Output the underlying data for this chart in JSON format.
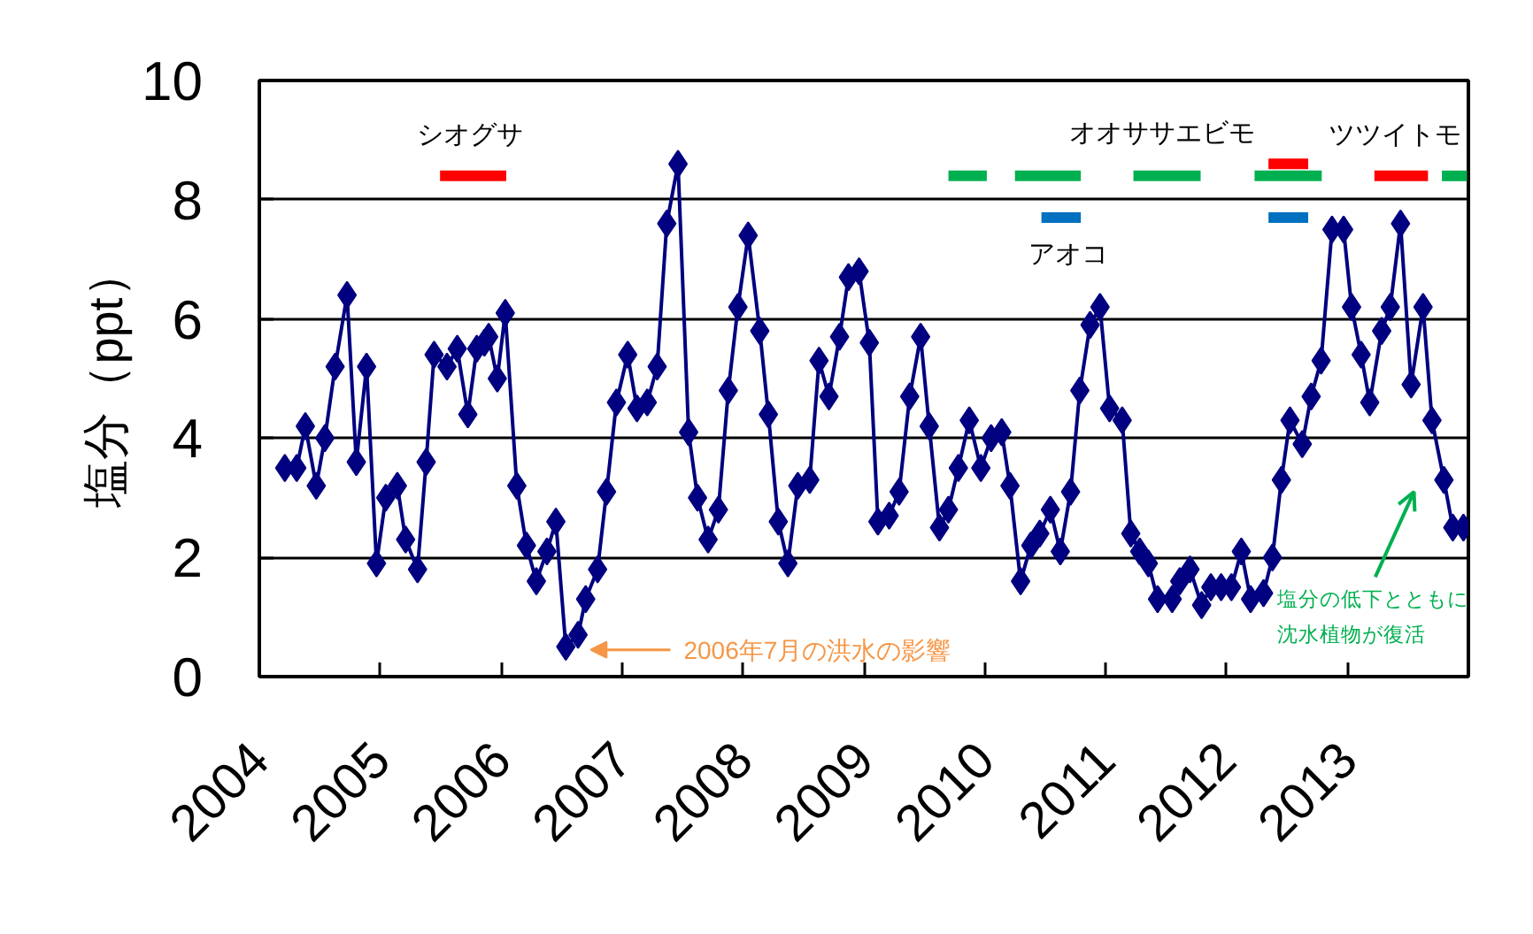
{
  "chart_data": {
    "type": "line",
    "ylabel": "塩分（ppt）",
    "marker": "diamond",
    "grid": "y",
    "xlim": [
      "2004",
      "2014"
    ],
    "xticks": [
      "2004",
      "2005",
      "2006",
      "2007",
      "2008",
      "2009",
      "2010",
      "2011",
      "2012",
      "2013"
    ],
    "ylim": [
      0,
      10
    ],
    "yticks": [
      0,
      2,
      4,
      6,
      8,
      10
    ],
    "x": [
      "2004-03-18",
      "2004-04-23",
      "2004-05-19",
      "2004-06-21",
      "2004-07-17",
      "2004-08-17",
      "2004-09-22",
      "2004-10-20",
      "2004-11-20",
      "2004-12-20",
      "2005-01-17",
      "2005-02-21",
      "2005-03-18",
      "2005-04-23",
      "2005-05-19",
      "2005-06-12",
      "2005-07-21",
      "2005-08-21",
      "2005-09-22",
      "2005-10-19",
      "2005-11-11",
      "2005-11-24",
      "2005-12-20",
      "2006-01-13",
      "2006-02-17",
      "2006-03-18",
      "2006-04-17",
      "2006-05-19",
      "2006-06-15",
      "2006-07-15",
      "2006-08-21",
      "2006-09-13",
      "2006-10-19",
      "2006-11-15",
      "2006-12-15",
      "2007-01-18",
      "2007-02-15",
      "2007-03-18",
      "2007-04-17",
      "2007-05-16",
      "2007-06-19",
      "2007-07-21",
      "2007-08-17",
      "2007-09-18",
      "2007-10-19",
      "2007-11-18",
      "2007-12-17",
      "2008-01-17",
      "2008-02-21",
      "2008-03-18",
      "2008-04-17",
      "2008-05-16",
      "2008-06-15",
      "2008-07-21",
      "2008-08-18",
      "2008-09-17",
      "2008-10-19",
      "2008-11-15",
      "2008-12-17",
      "2009-01-17",
      "2009-02-12",
      "2009-03-18",
      "2009-04-17",
      "2009-05-19",
      "2009-06-21",
      "2009-07-17",
      "2009-08-17",
      "2009-09-13",
      "2009-10-13",
      "2009-11-15",
      "2009-12-20",
      "2010-01-20",
      "2010-02-21",
      "2010-03-18",
      "2010-04-19",
      "2010-05-20",
      "2010-06-16",
      "2010-07-18",
      "2010-08-17",
      "2010-09-17",
      "2010-10-15",
      "2010-11-15",
      "2010-12-15",
      "2011-01-13",
      "2011-02-20",
      "2011-03-18",
      "2011-04-14",
      "2011-05-10",
      "2011-06-07",
      "2011-07-21",
      "2011-08-13",
      "2011-09-13",
      "2011-10-18",
      "2011-11-15",
      "2011-12-16",
      "2012-01-16",
      "2012-02-15",
      "2012-03-14",
      "2012-04-22",
      "2012-05-19",
      "2012-06-15",
      "2012-07-11",
      "2012-08-17",
      "2012-09-13",
      "2012-10-13",
      "2012-11-15",
      "2012-12-20",
      "2013-01-13",
      "2013-02-11",
      "2013-03-09",
      "2013-04-14",
      "2013-05-10",
      "2013-06-10",
      "2013-07-12",
      "2013-08-17",
      "2013-09-13",
      "2013-10-19",
      "2013-11-15",
      "2013-12-17"
    ],
    "series": [
      {
        "color": "#000080",
        "values": [
          3.5,
          3.5,
          4.2,
          3.2,
          4.0,
          5.2,
          6.4,
          3.6,
          5.2,
          1.9,
          3.0,
          3.2,
          2.3,
          1.8,
          3.6,
          5.4,
          5.2,
          5.5,
          4.4,
          5.5,
          5.6,
          5.7,
          5.0,
          6.1,
          3.2,
          2.2,
          1.6,
          2.1,
          2.6,
          0.5,
          0.7,
          1.3,
          1.8,
          3.1,
          4.6,
          5.4,
          4.5,
          4.6,
          5.2,
          7.6,
          8.6,
          4.1,
          3.0,
          2.3,
          2.8,
          4.8,
          6.2,
          7.4,
          5.8,
          4.4,
          2.6,
          1.9,
          3.2,
          3.3,
          5.3,
          4.7,
          5.7,
          6.7,
          6.8,
          5.6,
          2.6,
          2.7,
          3.1,
          4.7,
          5.7,
          4.2,
          2.5,
          2.8,
          3.5,
          4.3,
          3.5,
          4.0,
          4.1,
          3.2,
          1.6,
          2.2,
          2.4,
          2.8,
          2.1,
          3.1,
          4.8,
          5.9,
          6.2,
          4.5,
          4.3,
          2.4,
          2.1,
          1.9,
          1.3,
          1.3,
          1.6,
          1.8,
          1.2,
          1.5,
          1.5,
          1.5,
          2.1,
          1.3,
          1.4,
          2.0,
          3.3,
          4.3,
          3.9,
          4.7,
          5.3,
          7.5,
          7.5,
          6.2,
          5.4,
          4.6,
          5.8,
          6.2,
          7.6,
          4.9,
          6.2,
          4.3,
          3.3,
          2.5,
          2.5
        ]
      },
      {
        "color": "#ff0000",
        "marker": "none",
        "x": [
          "2005-06-30",
          "2006-01-16"
        ],
        "values": [
          8.4,
          8.4
        ]
      },
      {
        "color": "#00b050",
        "marker": "none",
        "x": [
          "2009-09-13",
          "2010-01-07"
        ],
        "values": [
          8.4,
          8.4
        ]
      },
      {
        "color": "#00b050",
        "marker": "none",
        "x": [
          "2010-04-02",
          "2010-10-18"
        ],
        "values": [
          8.4,
          8.4
        ]
      },
      {
        "color": "#00b050",
        "marker": "none",
        "x": [
          "2011-03-26",
          "2011-10-15"
        ],
        "values": [
          8.4,
          8.4
        ]
      },
      {
        "color": "#00b050",
        "marker": "none",
        "x": [
          "2012-03-26",
          "2012-10-15"
        ],
        "values": [
          8.4,
          8.4
        ]
      },
      {
        "color": "#00b050",
        "marker": "none",
        "x": [
          "2013-10-13",
          "2013-12-28"
        ],
        "values": [
          8.4,
          8.4
        ]
      },
      {
        "color": "#0070c0",
        "marker": "none",
        "x": [
          "2010-06-21",
          "2010-10-18"
        ],
        "values": [
          7.7,
          7.7
        ]
      },
      {
        "color": "#0070c0",
        "marker": "none",
        "x": [
          "2012-05-07",
          "2012-09-04"
        ],
        "values": [
          7.7,
          7.7
        ]
      },
      {
        "color": "#ff0000",
        "marker": "none",
        "x": [
          "2012-05-07",
          "2012-09-04"
        ],
        "values": [
          8.6,
          8.6
        ]
      },
      {
        "color": "#ff0000",
        "marker": "none",
        "x": [
          "2013-03-23",
          "2013-09-01"
        ],
        "values": [
          8.4,
          8.4
        ]
      }
    ],
    "annotations": [
      "シオグサ",
      "オオササエビモ",
      "アオコ",
      "ツツイトモ",
      "2006年7月の洪水の影響",
      "塩分の低下とともに",
      "沈水植物が復活"
    ]
  }
}
